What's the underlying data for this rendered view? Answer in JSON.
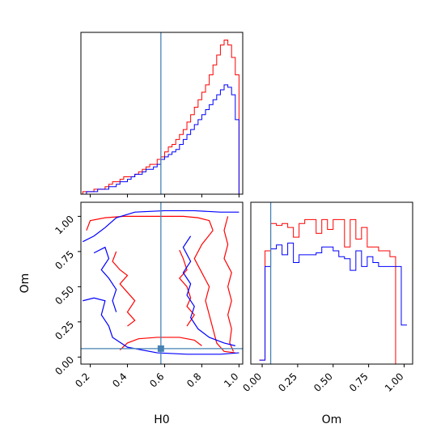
{
  "chart_data": [
    {
      "type": "histogram",
      "panel": "H0 marginal",
      "xlim": [
        0.15,
        1.02
      ],
      "truth": 0.58,
      "bin_edges": [
        0.1,
        0.12,
        0.14,
        0.16,
        0.18,
        0.2,
        0.22,
        0.24,
        0.26,
        0.28,
        0.3,
        0.32,
        0.34,
        0.36,
        0.38,
        0.4,
        0.42,
        0.44,
        0.46,
        0.48,
        0.5,
        0.52,
        0.54,
        0.56,
        0.58,
        0.6,
        0.62,
        0.64,
        0.66,
        0.68,
        0.7,
        0.72,
        0.74,
        0.76,
        0.78,
        0.8,
        0.82,
        0.84,
        0.86,
        0.88,
        0.9,
        0.92,
        0.94,
        0.96,
        0.98,
        1.0,
        1.02
      ],
      "series": [
        {
          "color": "#ff0000",
          "values": [
            0,
            0,
            0,
            1,
            1,
            1,
            2,
            2,
            2,
            3,
            4,
            5,
            5,
            6,
            7,
            7,
            7,
            8,
            9,
            10,
            11,
            12,
            12,
            14,
            15,
            17,
            19,
            20,
            22,
            24,
            26,
            29,
            32,
            35,
            38,
            41,
            44,
            48,
            52,
            56,
            60,
            62,
            60,
            55,
            48,
            0
          ]
        },
        {
          "color": "#0000ff",
          "values": [
            0,
            0,
            0,
            0,
            1,
            1,
            1,
            2,
            2,
            2,
            3,
            3,
            4,
            5,
            5,
            6,
            7,
            8,
            8,
            9,
            10,
            10,
            11,
            12,
            14,
            15,
            16,
            17,
            18,
            20,
            22,
            24,
            26,
            28,
            30,
            32,
            34,
            36,
            38,
            40,
            42,
            44,
            43,
            40,
            30,
            0
          ]
        }
      ]
    },
    {
      "type": "contour",
      "panel": "H0 vs Om joint",
      "xlim": [
        0.15,
        1.02
      ],
      "ylim": [
        -0.05,
        1.1
      ],
      "truth": {
        "x": 0.58,
        "y": 0.06
      },
      "series": [
        {
          "color": "#ff0000",
          "contours": [
            [
              [
                0.18,
                0.9
              ],
              [
                0.2,
                0.97
              ],
              [
                0.28,
                0.99
              ],
              [
                0.38,
                1.0
              ],
              [
                0.5,
                1.0
              ],
              [
                0.6,
                1.0
              ],
              [
                0.7,
                1.0
              ],
              [
                0.78,
                0.99
              ],
              [
                0.84,
                0.97
              ],
              [
                0.86,
                0.9
              ]
            ],
            [
              [
                0.86,
                0.9
              ],
              [
                0.8,
                0.8
              ],
              [
                0.76,
                0.7
              ],
              [
                0.8,
                0.6
              ],
              [
                0.84,
                0.5
              ],
              [
                0.82,
                0.4
              ],
              [
                0.84,
                0.3
              ],
              [
                0.86,
                0.2
              ],
              [
                0.88,
                0.1
              ],
              [
                0.92,
                0.04
              ],
              [
                0.98,
                0.03
              ]
            ],
            [
              [
                0.36,
                0.05
              ],
              [
                0.4,
                0.1
              ],
              [
                0.46,
                0.13
              ],
              [
                0.56,
                0.14
              ],
              [
                0.68,
                0.14
              ],
              [
                0.76,
                0.12
              ],
              [
                0.8,
                0.08
              ]
            ],
            [
              [
                0.34,
                0.75
              ],
              [
                0.32,
                0.68
              ],
              [
                0.36,
                0.62
              ],
              [
                0.4,
                0.58
              ],
              [
                0.36,
                0.52
              ],
              [
                0.4,
                0.46
              ],
              [
                0.44,
                0.4
              ],
              [
                0.4,
                0.32
              ],
              [
                0.44,
                0.26
              ],
              [
                0.4,
                0.22
              ]
            ],
            [
              [
                0.68,
                0.76
              ],
              [
                0.7,
                0.7
              ],
              [
                0.72,
                0.62
              ],
              [
                0.68,
                0.56
              ],
              [
                0.72,
                0.5
              ],
              [
                0.74,
                0.42
              ],
              [
                0.72,
                0.36
              ],
              [
                0.76,
                0.3
              ],
              [
                0.72,
                0.22
              ]
            ],
            [
              [
                0.94,
                1.0
              ],
              [
                0.92,
                0.9
              ],
              [
                0.94,
                0.8
              ],
              [
                0.92,
                0.7
              ],
              [
                0.96,
                0.6
              ],
              [
                0.94,
                0.5
              ],
              [
                0.96,
                0.4
              ],
              [
                0.94,
                0.3
              ],
              [
                0.96,
                0.2
              ],
              [
                0.95,
                0.1
              ],
              [
                0.97,
                0.04
              ]
            ]
          ]
        },
        {
          "color": "#0000ff",
          "contours": [
            [
              [
                0.16,
                0.82
              ],
              [
                0.22,
                0.86
              ],
              [
                0.28,
                0.92
              ],
              [
                0.34,
                0.99
              ],
              [
                0.44,
                1.03
              ],
              [
                0.6,
                1.04
              ],
              [
                0.76,
                1.04
              ],
              [
                0.9,
                1.03
              ],
              [
                1.0,
                1.03
              ]
            ],
            [
              [
                0.16,
                0.4
              ],
              [
                0.22,
                0.42
              ],
              [
                0.28,
                0.4
              ],
              [
                0.26,
                0.3
              ],
              [
                0.3,
                0.22
              ],
              [
                0.32,
                0.14
              ],
              [
                0.4,
                0.07
              ],
              [
                0.56,
                0.03
              ],
              [
                0.72,
                0.02
              ],
              [
                0.9,
                0.02
              ],
              [
                1.0,
                0.03
              ]
            ],
            [
              [
                0.22,
                0.74
              ],
              [
                0.28,
                0.78
              ],
              [
                0.3,
                0.7
              ],
              [
                0.26,
                0.62
              ],
              [
                0.3,
                0.56
              ],
              [
                0.34,
                0.48
              ],
              [
                0.32,
                0.4
              ],
              [
                0.34,
                0.32
              ]
            ],
            [
              [
                0.74,
                0.86
              ],
              [
                0.7,
                0.78
              ],
              [
                0.74,
                0.68
              ],
              [
                0.7,
                0.6
              ],
              [
                0.74,
                0.52
              ],
              [
                0.72,
                0.44
              ],
              [
                0.76,
                0.36
              ],
              [
                0.74,
                0.28
              ],
              [
                0.78,
                0.2
              ],
              [
                0.84,
                0.14
              ],
              [
                0.92,
                0.1
              ],
              [
                0.98,
                0.08
              ]
            ]
          ]
        }
      ]
    },
    {
      "type": "histogram",
      "panel": "Om marginal",
      "xlim": [
        -0.08,
        1.06
      ],
      "truth": 0.06,
      "bin_edges": [
        -0.02,
        0.02,
        0.06,
        0.1,
        0.14,
        0.18,
        0.22,
        0.26,
        0.3,
        0.34,
        0.38,
        0.42,
        0.46,
        0.5,
        0.54,
        0.58,
        0.62,
        0.66,
        0.7,
        0.74,
        0.78,
        0.82,
        0.86,
        0.9,
        0.94,
        0.98,
        1.02
      ],
      "series": [
        {
          "color": "#ff0000",
          "values": [
            2,
            58,
            72,
            71,
            72,
            70,
            65,
            72,
            74,
            74,
            67,
            74,
            69,
            74,
            74,
            60,
            74,
            64,
            70,
            60,
            60,
            58,
            58,
            55,
            0,
            0
          ]
        },
        {
          "color": "#0000ff",
          "values": [
            2,
            50,
            59,
            61,
            56,
            62,
            52,
            56,
            56,
            56,
            57,
            60,
            60,
            58,
            55,
            54,
            48,
            58,
            50,
            55,
            52,
            50,
            50,
            50,
            50,
            20
          ]
        }
      ]
    }
  ],
  "axes": {
    "xlabel_h0": "H0",
    "xlabel_om": "Om",
    "ylabel_om": "Om",
    "h0_ticks": [
      "0.2",
      "0.4",
      "0.6",
      "0.8",
      "1.0"
    ],
    "om_ticks": [
      "0.00",
      "0.25",
      "0.50",
      "0.75",
      "1.00"
    ]
  },
  "colors": {
    "truth": "#4682b4",
    "red_series": "#ff0000",
    "blue_series": "#0000ff"
  }
}
